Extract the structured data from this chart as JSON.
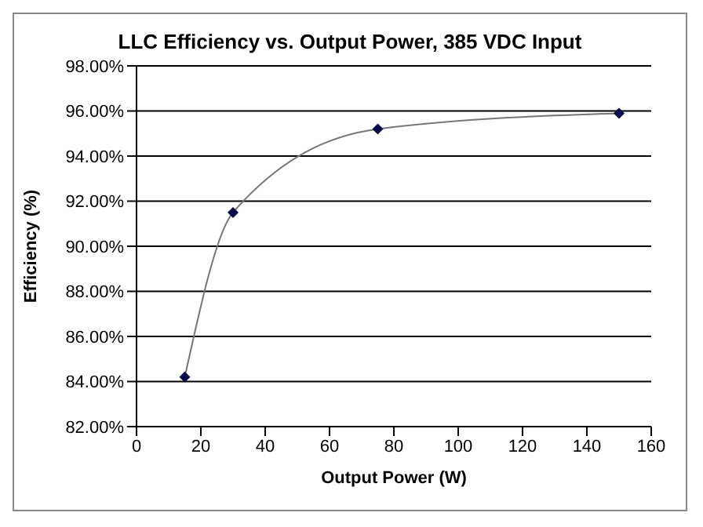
{
  "chart_data": {
    "type": "line",
    "title": "LLC Efficiency vs. Output Power, 385 VDC Input",
    "xlabel": "Output Power (W)",
    "ylabel": "Efficiency (%)",
    "x": [
      15,
      30,
      75,
      150
    ],
    "series": [
      {
        "color": "#0a0a4a",
        "values": [
          84.2,
          91.5,
          95.2,
          95.9
        ]
      }
    ],
    "xlim": [
      0,
      160
    ],
    "xticks": [
      0,
      20,
      40,
      60,
      80,
      100,
      120,
      140,
      160
    ],
    "ylim": [
      82,
      98
    ],
    "yticks": [
      {
        "value": 82,
        "label": "82.00%"
      },
      {
        "value": 84,
        "label": "84.00%"
      },
      {
        "value": 86,
        "label": "86.00%"
      },
      {
        "value": 88,
        "label": "88.00%"
      },
      {
        "value": 90,
        "label": "90.00%"
      },
      {
        "value": 92,
        "label": "92.00%"
      },
      {
        "value": 94,
        "label": "94.00%"
      },
      {
        "value": 96,
        "label": "96.00%"
      },
      {
        "value": 98,
        "label": "98.00%"
      }
    ],
    "grid": "y",
    "marker": "diamond",
    "line_style": "solid",
    "legend": false
  }
}
